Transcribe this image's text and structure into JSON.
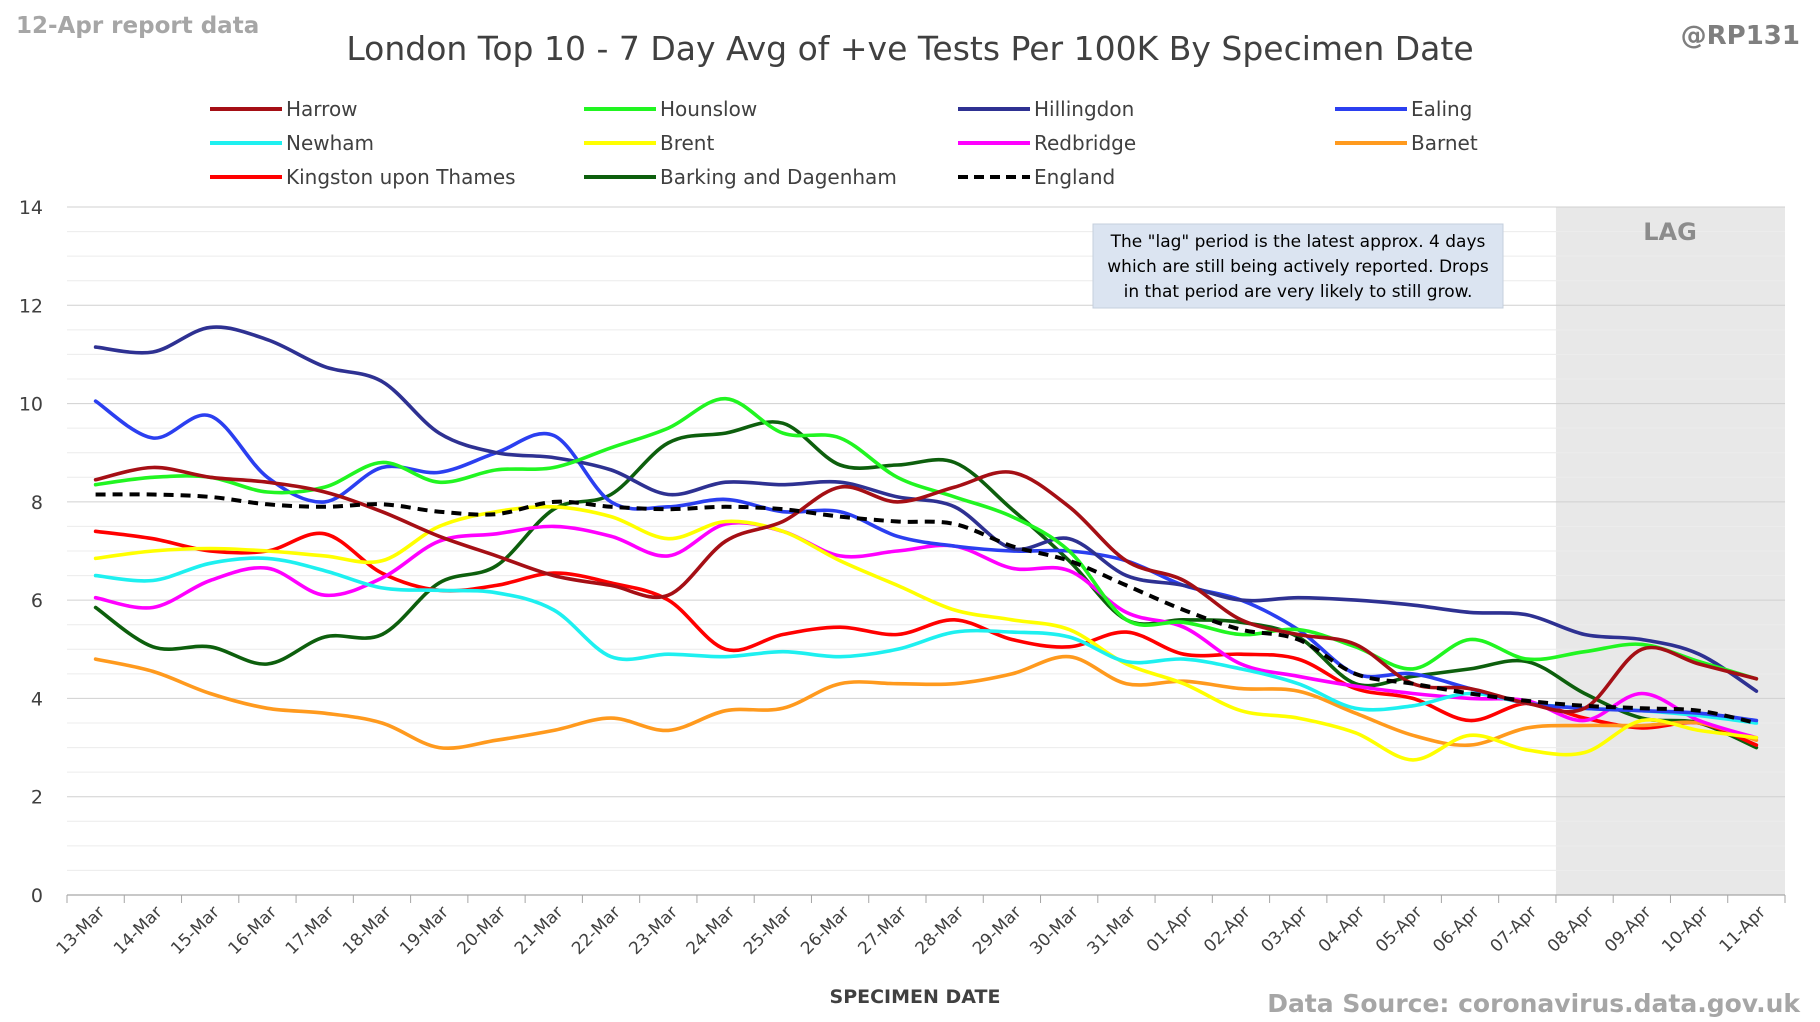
{
  "header": {
    "report_label": "12-Apr report data",
    "handle": "@RP131",
    "source": "Data Source: coronavirus.data.gov.uk"
  },
  "annotation": {
    "lines": [
      "The \"lag\" period is the latest approx. 4 days",
      "which are still being actively reported. Drops",
      "in that period are very likely to still grow."
    ]
  },
  "chart_data": {
    "type": "line",
    "title": "London Top 10 - 7 Day Avg of +ve Tests Per 100K By Specimen Date",
    "xlabel": "SPECIMEN DATE",
    "ylabel": "",
    "ylim": [
      0,
      14
    ],
    "y_ticks": [
      0,
      2,
      4,
      6,
      8,
      10,
      12,
      14
    ],
    "grid": true,
    "legend_position": "top",
    "lag_label": "LAG",
    "lag_start": "08-Apr",
    "lag_color": "#e8e8e8",
    "categories": [
      "13-Mar",
      "14-Mar",
      "15-Mar",
      "16-Mar",
      "17-Mar",
      "18-Mar",
      "19-Mar",
      "20-Mar",
      "21-Mar",
      "22-Mar",
      "23-Mar",
      "24-Mar",
      "25-Mar",
      "26-Mar",
      "27-Mar",
      "28-Mar",
      "29-Mar",
      "30-Mar",
      "31-Mar",
      "01-Apr",
      "02-Apr",
      "03-Apr",
      "04-Apr",
      "05-Apr",
      "06-Apr",
      "07-Apr",
      "08-Apr",
      "09-Apr",
      "10-Apr",
      "11-Apr"
    ],
    "series": [
      {
        "name": "Harrow",
        "color": "#a50f15",
        "dashed": false,
        "values": [
          8.45,
          8.7,
          8.5,
          8.4,
          8.2,
          7.8,
          7.3,
          6.9,
          6.5,
          6.3,
          6.1,
          7.2,
          7.6,
          8.3,
          8.0,
          8.3,
          8.6,
          7.9,
          6.8,
          6.4,
          5.6,
          5.3,
          5.1,
          4.3,
          4.2,
          3.9,
          3.8,
          5.0,
          4.7,
          4.4
        ]
      },
      {
        "name": "Hounslow",
        "color": "#21f521",
        "dashed": false,
        "values": [
          8.35,
          8.5,
          8.5,
          8.2,
          8.3,
          8.8,
          8.4,
          8.65,
          8.7,
          9.1,
          9.5,
          10.1,
          9.4,
          9.3,
          8.5,
          8.1,
          7.7,
          7.0,
          5.6,
          5.55,
          5.3,
          5.4,
          5.05,
          4.6,
          5.2,
          4.8,
          4.95,
          5.1,
          4.75,
          4.4
        ]
      },
      {
        "name": "Hillingdon",
        "color": "#2e3192",
        "dashed": false,
        "values": [
          11.15,
          11.05,
          11.55,
          11.3,
          10.75,
          10.45,
          9.4,
          9.0,
          8.9,
          8.65,
          8.15,
          8.4,
          8.35,
          8.4,
          8.1,
          7.9,
          7.05,
          7.25,
          6.5,
          6.3,
          6.0,
          6.05,
          6.0,
          5.9,
          5.75,
          5.7,
          5.3,
          5.2,
          4.9,
          4.15
        ]
      },
      {
        "name": "Ealing",
        "color": "#2b3ff0",
        "dashed": false,
        "values": [
          10.05,
          9.3,
          9.75,
          8.5,
          8.0,
          8.7,
          8.6,
          9.0,
          9.35,
          8.0,
          7.9,
          8.05,
          7.8,
          7.8,
          7.3,
          7.1,
          7.0,
          7.0,
          6.8,
          6.3,
          6.0,
          5.4,
          4.5,
          4.5,
          4.2,
          3.9,
          3.8,
          3.75,
          3.7,
          3.55
        ]
      },
      {
        "name": "Newham",
        "color": "#1ef0f0",
        "dashed": false,
        "values": [
          6.5,
          6.4,
          6.75,
          6.85,
          6.6,
          6.25,
          6.2,
          6.15,
          5.8,
          4.85,
          4.9,
          4.85,
          4.95,
          4.85,
          5.0,
          5.35,
          5.35,
          5.25,
          4.75,
          4.8,
          4.6,
          4.3,
          3.8,
          3.85,
          4.1,
          3.9,
          3.8,
          3.75,
          3.65,
          3.5
        ]
      },
      {
        "name": "Brent",
        "color": "#ffff00",
        "dashed": false,
        "values": [
          6.85,
          7.0,
          7.05,
          7.0,
          6.9,
          6.8,
          7.5,
          7.8,
          7.9,
          7.7,
          7.25,
          7.6,
          7.4,
          6.8,
          6.3,
          5.8,
          5.6,
          5.4,
          4.7,
          4.3,
          3.75,
          3.6,
          3.3,
          2.75,
          3.25,
          2.95,
          2.9,
          3.55,
          3.35,
          3.2
        ]
      },
      {
        "name": "Redbridge",
        "color": "#ff00ff",
        "dashed": false,
        "values": [
          6.05,
          5.85,
          6.4,
          6.65,
          6.1,
          6.45,
          7.2,
          7.35,
          7.5,
          7.3,
          6.9,
          7.55,
          7.4,
          6.9,
          7.0,
          7.1,
          6.65,
          6.6,
          5.75,
          5.45,
          4.7,
          4.45,
          4.25,
          4.1,
          4.0,
          3.95,
          3.55,
          4.1,
          3.55,
          3.2
        ]
      },
      {
        "name": "Barnet",
        "color": "#ff9a1e",
        "dashed": false,
        "values": [
          4.8,
          4.55,
          4.1,
          3.8,
          3.7,
          3.5,
          3.0,
          3.15,
          3.35,
          3.6,
          3.35,
          3.75,
          3.8,
          4.3,
          4.3,
          4.3,
          4.5,
          4.85,
          4.3,
          4.35,
          4.2,
          4.15,
          3.7,
          3.25,
          3.05,
          3.4,
          3.45,
          3.45,
          3.5,
          3.15
        ]
      },
      {
        "name": "Kingston upon Thames",
        "color": "#ff0000",
        "dashed": false,
        "values": [
          7.4,
          7.25,
          7.0,
          7.0,
          7.35,
          6.55,
          6.2,
          6.3,
          6.55,
          6.35,
          6.0,
          5.0,
          5.3,
          5.45,
          5.3,
          5.6,
          5.2,
          5.05,
          5.35,
          4.9,
          4.9,
          4.8,
          4.2,
          4.0,
          3.55,
          3.9,
          3.6,
          3.4,
          3.5,
          3.05
        ]
      },
      {
        "name": "Barking and Dagenham",
        "color": "#0d5f0d",
        "dashed": false,
        "values": [
          5.85,
          5.05,
          5.05,
          4.7,
          5.25,
          5.3,
          6.35,
          6.7,
          7.85,
          8.15,
          9.2,
          9.4,
          9.6,
          8.75,
          8.75,
          8.8,
          7.85,
          6.8,
          5.6,
          5.6,
          5.55,
          5.25,
          4.3,
          4.45,
          4.6,
          4.75,
          4.1,
          3.6,
          3.5,
          3.0
        ]
      },
      {
        "name": "England",
        "color": "#000000",
        "dashed": true,
        "values": [
          8.15,
          8.15,
          8.1,
          7.95,
          7.9,
          7.95,
          7.8,
          7.75,
          8.0,
          7.9,
          7.85,
          7.9,
          7.85,
          7.7,
          7.6,
          7.55,
          7.1,
          6.8,
          6.3,
          5.8,
          5.4,
          5.2,
          4.5,
          4.3,
          4.1,
          3.95,
          3.85,
          3.8,
          3.75,
          3.5
        ]
      }
    ]
  }
}
